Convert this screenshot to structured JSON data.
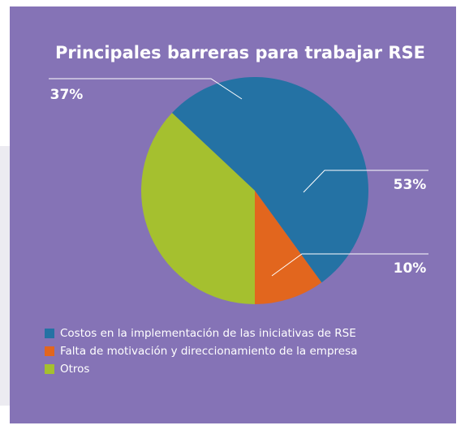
{
  "chart_data": {
    "type": "pie",
    "title": "Principales barreras para trabajar RSE",
    "categories": [
      "Costos en la implementación de las iniciativas de RSE",
      "Falta de motivación y direccionamiento de la empresa",
      "Otros"
    ],
    "values": [
      53,
      10,
      37
    ],
    "value_labels": [
      "53%",
      "10%",
      "37%"
    ],
    "colors": [
      "#2472a4",
      "#e2661e",
      "#a5c02f"
    ],
    "legend": "bottom-left"
  }
}
